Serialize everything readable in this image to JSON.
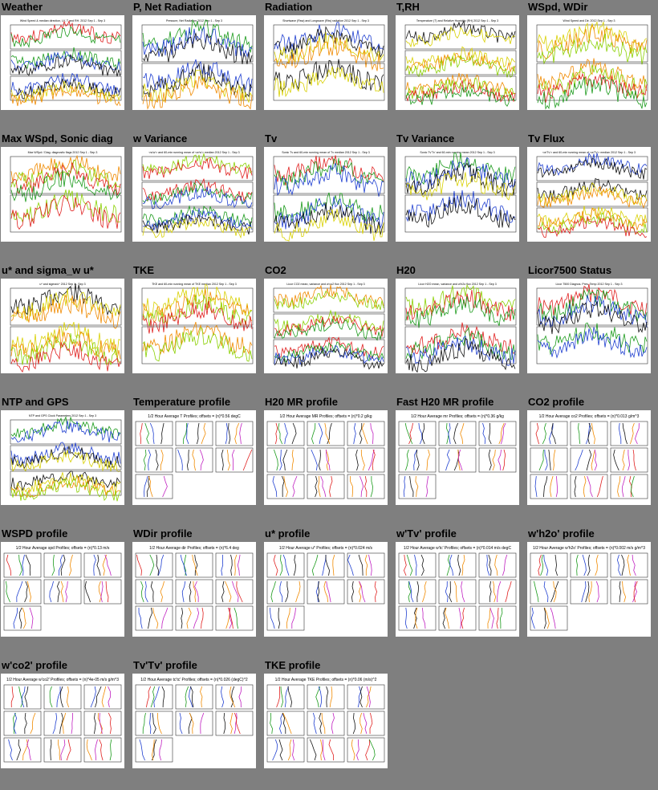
{
  "page": {
    "background": "#7f7f7f"
  },
  "plots": [
    {
      "title": "Weather",
      "kind": "ts",
      "caption": "Wind Speed & median direction, LV, T and RH. 2012 Sep 1 - Sep 3"
    },
    {
      "title": "P, Net Radiation",
      "kind": "ts",
      "caption": "Pressure, Net Radiation 2012 Sep 1 - Sep 3"
    },
    {
      "title": "Radiation",
      "kind": "ts",
      "caption": "Shortwave (Rsw) and Longwave (Rlw) radiation 2012 Sep 1 - Sep 3"
    },
    {
      "title": "T,RH",
      "kind": "ts",
      "caption": "Temperature (T) and Relative Humidity (RH) 2012 Sep 1 - Sep 3"
    },
    {
      "title": "WSpd, WDir",
      "kind": "ts",
      "caption": "Wind Speed and Dir. 2012 Sep 1 - Sep 3"
    },
    {
      "title": "Max WSpd, Sonic diag",
      "kind": "ts",
      "caption": "Max WSpd / Diag. diagnostic flags 2012 Sep 1 - Sep 3"
    },
    {
      "title": "w Variance",
      "kind": "ts",
      "caption": "<w'w'> and 60-min running mean of <w'w'> median 2012 Sep 1 - Sep 3"
    },
    {
      "title": "Tv",
      "kind": "ts",
      "caption": "Sonic Tv and 60-min running mean of Tv median 2012 Sep 1 - Sep 3"
    },
    {
      "title": "Tv Variance",
      "kind": "ts",
      "caption": "Sonic Tv'Tv' and 60-min running mean 2012 Sep 1 - Sep 3"
    },
    {
      "title": "Tv Flux",
      "kind": "ts",
      "caption": "<w'Tv'> and 60-min running mean of <w'Tv'> median 2012 Sep 1 - Sep 3"
    },
    {
      "title": "u* and sigma_w u*",
      "kind": "ts",
      "caption": "u* and sigma/u* 2012 Sep 1 - Sep 3"
    },
    {
      "title": "TKE",
      "kind": "ts",
      "caption": "TKE and 60-min running mean of TKE median 2012 Sep 1 - Sep 3"
    },
    {
      "title": "CO2",
      "kind": "ts",
      "caption": "Licor CO2 mean, variance and w'co2 flux 2012 Sep 1 - Sep 3"
    },
    {
      "title": "H20",
      "kind": "ts",
      "caption": "Licor H2O mean, variance and w'h2o flux 2012 Sep 1 - Sep 3"
    },
    {
      "title": "Licor7500 Status",
      "kind": "ts",
      "caption": "Licor 7500 Diagnos. Pres. Temp 2012 Sep 1 - Sep 3"
    },
    {
      "title": "NTP and GPS",
      "kind": "ts",
      "caption": "NTP and GPS Clock Parameters 2012 Sep 1 - Sep 3"
    },
    {
      "title": "Temperature profile",
      "kind": "profile",
      "caption": "1/2 Hour Average T Profiles; offsets = (n)*0.56 degC"
    },
    {
      "title": "H20 MR profile",
      "kind": "profile",
      "caption": "1/2 Hour Average MR Profiles; offsets = (n)*0.2 g/kg"
    },
    {
      "title": "Fast H20 MR profile",
      "kind": "profile",
      "caption": "1/2 Hour Average mr Profiles; offsets = (n)*0.36 g/kg"
    },
    {
      "title": "CO2 profile",
      "kind": "profile",
      "caption": "1/2 Hour Average co2 Profiles; offsets = (n)*0.013 g/m^3"
    },
    {
      "title": "WSPD profile",
      "kind": "profile",
      "caption": "1/2 Hour Average spd Profiles; offsets = (n)*0.13 m/s"
    },
    {
      "title": "WDir profile",
      "kind": "profile",
      "caption": "1/2 Hour Average dir Profiles; offsets = (n)*6.4 deg"
    },
    {
      "title": "u* profile",
      "kind": "profile",
      "caption": "1/2 Hour Average u* Profiles; offsets = (n)*0.024 m/s"
    },
    {
      "title": "w'Tv' profile",
      "kind": "profile",
      "caption": "1/2 Hour Average w'tc' Profiles; offsets = (n)*0.014 m/s degC"
    },
    {
      "title": "w'h2o' profile",
      "kind": "profile",
      "caption": "1/2 Hour Average w'h2o' Profiles; offsets = (n)*0.002 m/s g/m^3"
    },
    {
      "title": "w'co2' profile",
      "kind": "profile",
      "caption": "1/2 Hour Average w'co2' Profiles; offsets = (n)*4e-05 m/s g/m^3"
    },
    {
      "title": "Tv'Tv' profile",
      "kind": "profile",
      "caption": "1/2 Hour Average tc'tc' Profiles; offsets = (n)*0.026 (degC)^2"
    },
    {
      "title": "TKE profile",
      "kind": "profile",
      "caption": "1/2 Hour Average TKE Profiles; offsets = (n)*0.06 (m/s)^2"
    }
  ],
  "colors": {
    "red": "#e0201f",
    "green": "#1a9a1a",
    "blue": "#1f3fd0",
    "black": "#111111",
    "yellow": "#d8d000",
    "orange": "#f08a00",
    "lime": "#8ad000",
    "magenta": "#c020c0"
  }
}
